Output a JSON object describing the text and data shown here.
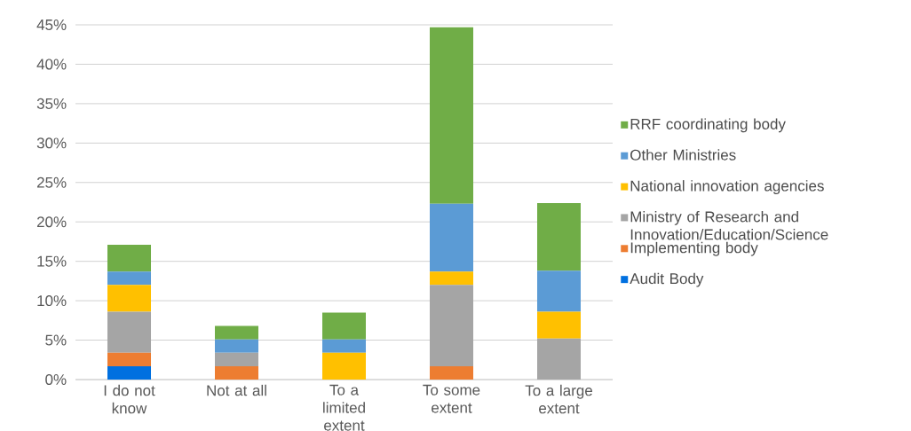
{
  "chart_data": {
    "type": "bar",
    "stacked": true,
    "categories": [
      "I do not know",
      "Not at all",
      "To a limited extent",
      "To some extent",
      "To a large extent"
    ],
    "series": [
      {
        "name": "Audit Body",
        "color": "#0070e0",
        "values": [
          1.7,
          0,
          0,
          0,
          0
        ]
      },
      {
        "name": "Implementing body",
        "color": "#ed7d31",
        "values": [
          1.7,
          1.7,
          0,
          1.7,
          0
        ]
      },
      {
        "name": "Ministry of Research and Innovation/Education/Science",
        "color": "#a5a5a5",
        "values": [
          5.2,
          1.7,
          0,
          10.3,
          5.2
        ]
      },
      {
        "name": "National innovation agencies",
        "color": "#ffc000",
        "values": [
          3.4,
          0,
          3.4,
          1.7,
          3.4
        ]
      },
      {
        "name": "Other Ministries",
        "color": "#5b9bd5",
        "values": [
          1.7,
          1.7,
          1.7,
          8.6,
          5.2
        ]
      },
      {
        "name": "RRF coordinating body",
        "color": "#70ad47",
        "values": [
          3.4,
          1.7,
          3.4,
          22.4,
          8.6
        ]
      }
    ],
    "ylim": [
      0,
      45
    ],
    "yticks": [
      {
        "value": 0,
        "label": "0%"
      },
      {
        "value": 5,
        "label": "5%"
      },
      {
        "value": 10,
        "label": "10%"
      },
      {
        "value": 15,
        "label": "15%"
      },
      {
        "value": 20,
        "label": "20%"
      },
      {
        "value": 25,
        "label": "25%"
      },
      {
        "value": 30,
        "label": "30%"
      },
      {
        "value": 35,
        "label": "35%"
      },
      {
        "value": 40,
        "label": "40%"
      },
      {
        "value": 45,
        "label": "45%"
      }
    ],
    "grid": "y",
    "legend": "right"
  }
}
